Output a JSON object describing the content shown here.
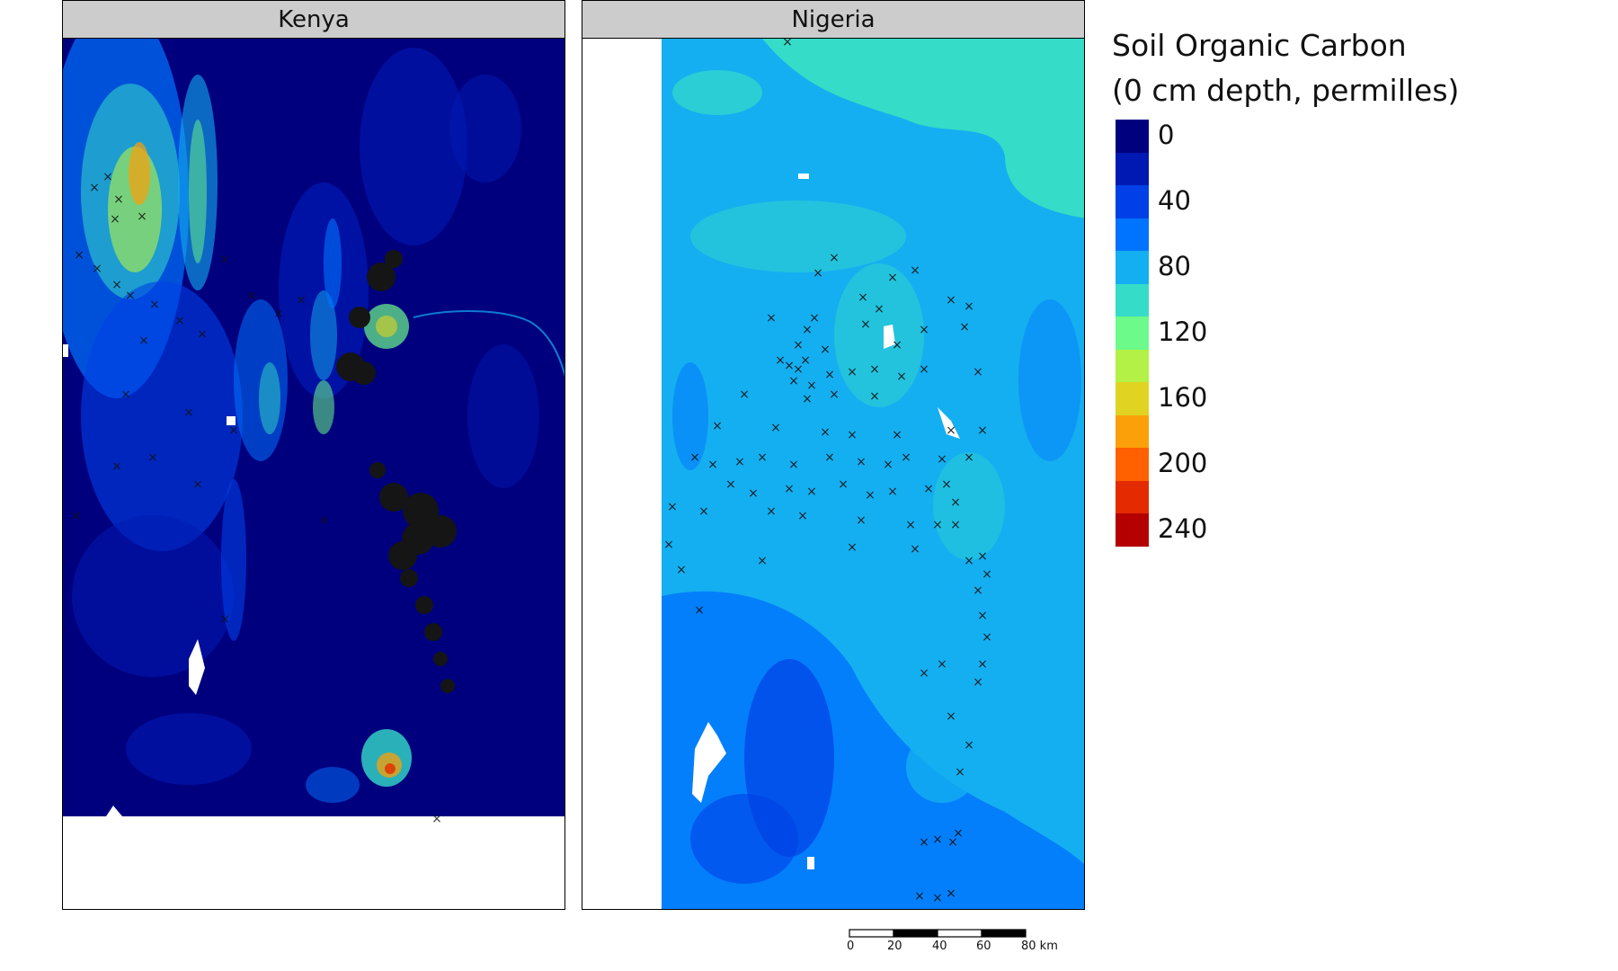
{
  "panels": [
    {
      "label": "Kenya"
    },
    {
      "label": "Nigeria"
    }
  ],
  "legend": {
    "title_line1": "Soil Organic Carbon",
    "title_line2": "(0 cm depth, permilles)",
    "colors": [
      "#00007f",
      "#0019b3",
      "#0040e6",
      "#0073ff",
      "#14aff0",
      "#35dcc8",
      "#6cfa8a",
      "#b4f146",
      "#e0d322",
      "#fba008",
      "#ff6000",
      "#e42a00",
      "#b40000"
    ],
    "labels": [
      "0",
      "40",
      "80",
      "120",
      "160",
      "200",
      "240"
    ]
  },
  "scale_bar": {
    "ticks": [
      "0",
      "20",
      "40",
      "60",
      "80 km"
    ]
  },
  "sample_marker": "×"
}
